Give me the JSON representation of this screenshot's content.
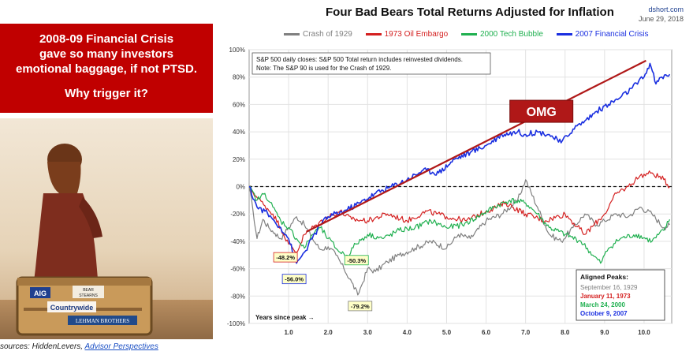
{
  "headline": {
    "line1": "2008-09 Financial Crisis",
    "line2": "gave so many investors",
    "line3": "emotional baggage, if not PTSD.",
    "line4": "Why trigger it?"
  },
  "photo": {
    "logos": [
      "AIG",
      "BEAR STEARNS",
      "Countrywide",
      "LEHMAN BROTHERS"
    ]
  },
  "sources": {
    "prefix": "sources: HiddenLevers, ",
    "link": "Advisor Perspectives"
  },
  "brand": {
    "site": "dshort.com",
    "date": "June 29, 2018"
  },
  "chart_data": {
    "type": "line",
    "title": "Four Bad Bears Total Returns Adjusted for Inflation",
    "note_line1": "S&P 500 daily closes: S&P 500 Total return includes reinvested dividends.",
    "note_line2": "Note: The S&P 90 is used for the Crash of 1929.",
    "xlabel": "Years since peak →",
    "xlim": [
      0,
      10.7
    ],
    "ylim": [
      -100,
      100
    ],
    "x_ticks": [
      1.0,
      2.0,
      3.0,
      4.0,
      5.0,
      6.0,
      7.0,
      8.0,
      9.0,
      10.0
    ],
    "x_tick_labels": [
      "1.0",
      "2.0",
      "3.0",
      "4.0",
      "5.0",
      "6.0",
      "7.0",
      "8.0",
      "9.0",
      "10.0"
    ],
    "y_ticks": [
      -100,
      -80,
      -60,
      -40,
      -20,
      0,
      20,
      40,
      60,
      80,
      100
    ],
    "y_tick_labels": [
      "-100%",
      "-80%",
      "-60%",
      "-40%",
      "-20%",
      "0%",
      "20%",
      "40%",
      "60%",
      "80%",
      "100%"
    ],
    "grid": true,
    "legend_position": "top",
    "series": [
      {
        "name": "Crash of 1929",
        "color": "#808080",
        "x": [
          0,
          0.1,
          0.2,
          0.35,
          0.5,
          0.65,
          0.8,
          1.0,
          1.2,
          1.4,
          1.6,
          1.8,
          2.0,
          2.2,
          2.4,
          2.6,
          2.75,
          2.85,
          3.0,
          3.2,
          3.5,
          3.8,
          4.2,
          4.6,
          5.0,
          5.3,
          5.6,
          6.0,
          6.4,
          6.8,
          7.0,
          7.3,
          7.6,
          7.9,
          8.2,
          8.5,
          8.8,
          9.0,
          9.3,
          9.6,
          9.9,
          10.2,
          10.5,
          10.65
        ],
        "y": [
          0,
          -18,
          -38,
          -24,
          -30,
          -34,
          -38,
          -30,
          -22,
          -28,
          -38,
          -46,
          -44,
          -50,
          -60,
          -70,
          -79.2,
          -72,
          -60,
          -62,
          -55,
          -50,
          -45,
          -40,
          -45,
          -35,
          -38,
          -25,
          -20,
          -10,
          5,
          -15,
          -35,
          -40,
          -30,
          -20,
          -28,
          -25,
          -20,
          -22,
          -15,
          -20,
          -30,
          -28
        ]
      },
      {
        "name": "1973 Oil Embargo",
        "color": "#d42020",
        "x": [
          0,
          0.2,
          0.4,
          0.6,
          0.8,
          1.0,
          1.2,
          1.4,
          1.7,
          2.0,
          2.3,
          2.6,
          3.0,
          3.5,
          4.0,
          4.5,
          5.0,
          5.5,
          6.0,
          6.5,
          7.0,
          7.5,
          8.0,
          8.5,
          9.0,
          9.3,
          9.6,
          9.9,
          10.2,
          10.5,
          10.65
        ],
        "y": [
          0,
          -8,
          -14,
          -20,
          -30,
          -42,
          -48.2,
          -35,
          -28,
          -22,
          -18,
          -24,
          -25,
          -20,
          -25,
          -18,
          -22,
          -25,
          -18,
          -12,
          -20,
          -25,
          -20,
          -35,
          -20,
          -5,
          0,
          8,
          10,
          5,
          0
        ]
      },
      {
        "name": "2000 Tech Bubble",
        "color": "#20b050",
        "x": [
          0,
          0.2,
          0.4,
          0.6,
          0.8,
          1.0,
          1.2,
          1.4,
          1.6,
          1.8,
          2.0,
          2.3,
          2.5,
          2.7,
          3.0,
          3.4,
          3.8,
          4.2,
          4.6,
          5.0,
          5.4,
          5.8,
          6.2,
          6.6,
          7.0,
          7.3,
          7.6,
          8.0,
          8.4,
          8.7,
          8.9,
          9.1,
          9.4,
          9.8,
          10.2,
          10.5,
          10.65
        ],
        "y": [
          0,
          -10,
          -5,
          -15,
          -25,
          -30,
          -38,
          -45,
          -35,
          -30,
          -38,
          -48,
          -50.3,
          -42,
          -35,
          -38,
          -32,
          -30,
          -25,
          -30,
          -28,
          -22,
          -15,
          -10,
          -12,
          -20,
          -30,
          -35,
          -40,
          -50,
          -56,
          -45,
          -38,
          -35,
          -40,
          -32,
          -24
        ]
      },
      {
        "name": "2007 Financial Crisis",
        "color": "#1a2fe0",
        "x": [
          0,
          0.2,
          0.4,
          0.6,
          0.8,
          1.0,
          1.2,
          1.4,
          1.6,
          1.8,
          2.0,
          2.4,
          2.8,
          3.2,
          3.6,
          4.0,
          4.4,
          4.8,
          5.2,
          5.6,
          6.0,
          6.4,
          6.8,
          7.0,
          7.3,
          7.6,
          7.9,
          8.2,
          8.5,
          8.8,
          9.1,
          9.4,
          9.7,
          10.0,
          10.15,
          10.3,
          10.45,
          10.65
        ],
        "y": [
          0,
          -15,
          -18,
          -24,
          -30,
          -38,
          -56.0,
          -48,
          -38,
          -28,
          -22,
          -18,
          -12,
          -5,
          0,
          5,
          12,
          10,
          20,
          25,
          30,
          38,
          40,
          38,
          40,
          38,
          32,
          42,
          48,
          55,
          60,
          65,
          72,
          80,
          90,
          75,
          80,
          82
        ]
      }
    ],
    "annotations": {
      "arrow_label": "OMG",
      "troughs": [
        {
          "label": "-48.2%",
          "x": 1.2,
          "y": -48.2,
          "border": "#d42020"
        },
        {
          "label": "-56.0%",
          "x": 1.2,
          "y": -56.0,
          "border": "#1a2fe0"
        },
        {
          "label": "-50.3%",
          "x": 2.5,
          "y": -50.3,
          "border": "#20b050"
        },
        {
          "label": "-79.2%",
          "x": 2.75,
          "y": -79.2,
          "border": "#808080"
        }
      ],
      "peaks_title": "Aligned Peaks:",
      "peaks": [
        {
          "text": "September 16, 1929",
          "color": "#808080"
        },
        {
          "text": "January 11, 1973",
          "color": "#d42020"
        },
        {
          "text": "March 24, 2000",
          "color": "#20b050"
        },
        {
          "text": "October 9, 2007",
          "color": "#1a2fe0"
        }
      ]
    }
  }
}
